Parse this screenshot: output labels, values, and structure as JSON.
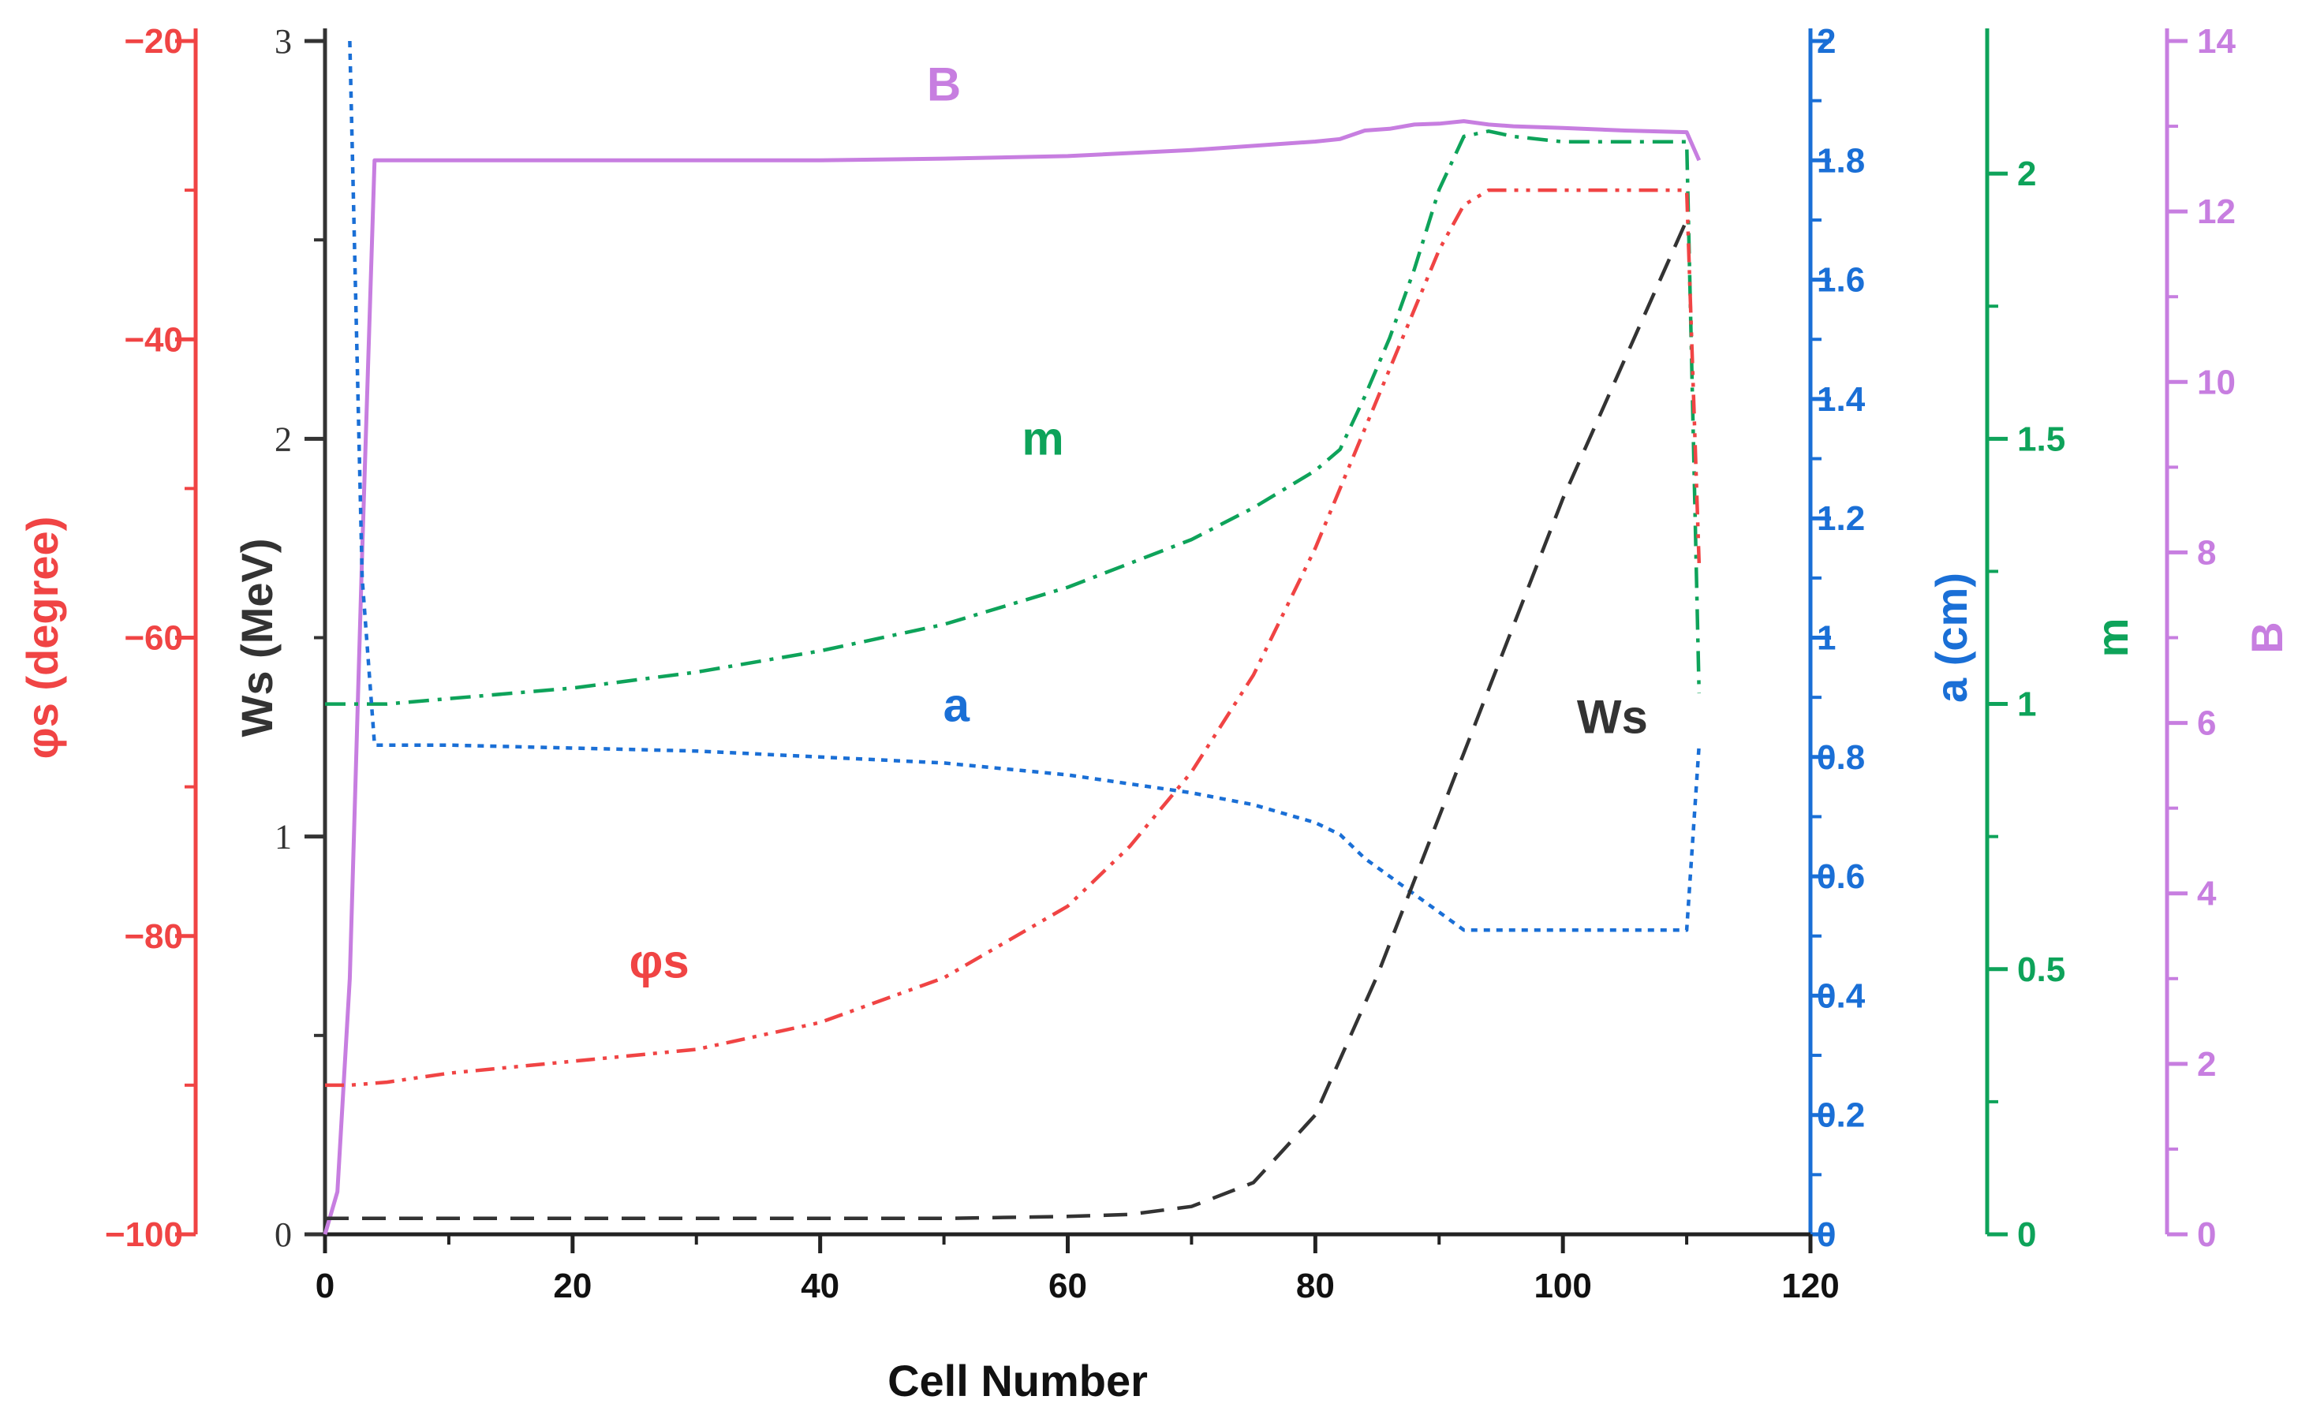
{
  "chart_data": {
    "type": "line",
    "title": "",
    "xlabel": "Cell Number",
    "xlim": [
      0,
      120
    ],
    "xticks": [
      0,
      20,
      40,
      60,
      80,
      100,
      120
    ],
    "grid": false,
    "axes": [
      {
        "id": "phi",
        "label": "φs (degree)",
        "color": "#f04444",
        "side": "left-outer",
        "ylim": [
          -100,
          -20
        ],
        "ticks": [
          -100,
          -80,
          -60,
          -40,
          -20
        ],
        "tick_labels": [
          "−100",
          "−80",
          "−60",
          "−40",
          "−20"
        ]
      },
      {
        "id": "ws",
        "label": "Ws (MeV)",
        "color": "#333333",
        "side": "left-inner",
        "ylim": [
          0,
          3
        ],
        "ticks": [
          0,
          1,
          2,
          3
        ],
        "tick_labels": [
          "0",
          "1",
          "2",
          "3"
        ]
      },
      {
        "id": "a",
        "label": "a (cm)",
        "color": "#1a6fd6",
        "side": "right-1",
        "ylim": [
          0,
          2
        ],
        "ticks": [
          0,
          0.2,
          0.4,
          0.6,
          0.8,
          1,
          1.2,
          1.4,
          1.6,
          1.8,
          2
        ],
        "tick_labels": [
          "0",
          "0.2",
          "0.4",
          "0.6",
          "0.8",
          "1",
          "1.2",
          "1.4",
          "1.6",
          "1.8",
          "2"
        ]
      },
      {
        "id": "m",
        "label": "m",
        "color": "#0ea35a",
        "side": "right-2",
        "ylim": [
          0,
          2.25
        ],
        "ticks": [
          0,
          0.5,
          1,
          1.5,
          2
        ],
        "tick_labels": [
          "0",
          "0.5",
          "1",
          "1.5",
          "2"
        ]
      },
      {
        "id": "B",
        "label": "B",
        "color": "#c77ee0",
        "side": "right-3",
        "ylim": [
          0,
          14
        ],
        "ticks": [
          0,
          2,
          4,
          6,
          8,
          10,
          12,
          14
        ],
        "tick_labels": [
          "0",
          "2",
          "4",
          "6",
          "8",
          "10",
          "12",
          "14"
        ]
      }
    ],
    "series": [
      {
        "name": "B",
        "axis": "B",
        "style": "solid",
        "color": "#c77ee0",
        "x": [
          0,
          1,
          2,
          3,
          4,
          10,
          20,
          40,
          50,
          60,
          70,
          80,
          82,
          84,
          86,
          88,
          90,
          92,
          94,
          96,
          100,
          105,
          110,
          111
        ],
        "y": [
          0,
          0.5,
          3,
          8,
          12.6,
          12.6,
          12.6,
          12.6,
          12.62,
          12.65,
          12.72,
          12.82,
          12.85,
          12.95,
          12.97,
          13.02,
          13.03,
          13.06,
          13.02,
          13.0,
          12.98,
          12.95,
          12.93,
          12.6
        ]
      },
      {
        "name": "m",
        "axis": "m",
        "style": "dashdot",
        "color": "#0ea35a",
        "x": [
          0,
          2,
          5,
          10,
          20,
          30,
          40,
          50,
          60,
          70,
          75,
          80,
          82,
          84,
          86,
          88,
          90,
          92,
          94,
          96,
          100,
          105,
          110,
          111
        ],
        "y": [
          1.0,
          1.0,
          1.0,
          1.01,
          1.03,
          1.06,
          1.1,
          1.15,
          1.22,
          1.31,
          1.37,
          1.44,
          1.48,
          1.58,
          1.69,
          1.82,
          1.97,
          2.07,
          2.08,
          2.07,
          2.06,
          2.06,
          2.06,
          1.02
        ]
      },
      {
        "name": "a",
        "axis": "a",
        "style": "dotted",
        "color": "#1a6fd6",
        "x": [
          2,
          3,
          4,
          10,
          20,
          30,
          40,
          50,
          60,
          70,
          75,
          80,
          82,
          84,
          86,
          88,
          90,
          92,
          94,
          100,
          105,
          110,
          111
        ],
        "y": [
          2.0,
          1.1,
          0.82,
          0.82,
          0.815,
          0.81,
          0.8,
          0.79,
          0.77,
          0.74,
          0.72,
          0.69,
          0.67,
          0.63,
          0.6,
          0.57,
          0.54,
          0.51,
          0.51,
          0.51,
          0.51,
          0.51,
          0.82
        ]
      },
      {
        "name": "φs",
        "axis": "phi",
        "style": "dashdotdot",
        "color": "#f04444",
        "x": [
          0,
          2,
          5,
          10,
          20,
          30,
          40,
          50,
          60,
          65,
          70,
          75,
          80,
          85,
          88,
          90,
          92,
          94,
          96,
          100,
          105,
          110,
          111
        ],
        "y": [
          -90,
          -90,
          -89.8,
          -89.2,
          -88.4,
          -87.6,
          -85.8,
          -82.8,
          -78,
          -74,
          -69,
          -62.5,
          -54,
          -44,
          -38,
          -34,
          -31,
          -30,
          -30,
          -30,
          -30,
          -30,
          -55
        ]
      },
      {
        "name": "Ws",
        "axis": "ws",
        "style": "dashed",
        "color": "#333333",
        "x": [
          0,
          10,
          20,
          30,
          40,
          50,
          60,
          65,
          70,
          75,
          80,
          85,
          90,
          95,
          100,
          105,
          110
        ],
        "y": [
          0.04,
          0.04,
          0.04,
          0.04,
          0.04,
          0.04,
          0.045,
          0.05,
          0.07,
          0.13,
          0.3,
          0.65,
          1.05,
          1.45,
          1.85,
          2.2,
          2.55
        ]
      }
    ],
    "annotations": [
      {
        "series": "B",
        "text": "B",
        "x": 50,
        "y_axis": "B",
        "y": 13.3
      },
      {
        "series": "m",
        "text": "m",
        "x": 58,
        "y_axis": "m",
        "y": 1.47
      },
      {
        "series": "a",
        "text": "a",
        "x": 51,
        "y_axis": "a",
        "y": 0.86
      },
      {
        "series": "φs",
        "text": "φs",
        "x": 27,
        "y_axis": "phi",
        "y": -82.8
      },
      {
        "series": "Ws",
        "text": "Ws",
        "x": 104,
        "y_axis": "ws",
        "y": 1.26
      }
    ]
  }
}
